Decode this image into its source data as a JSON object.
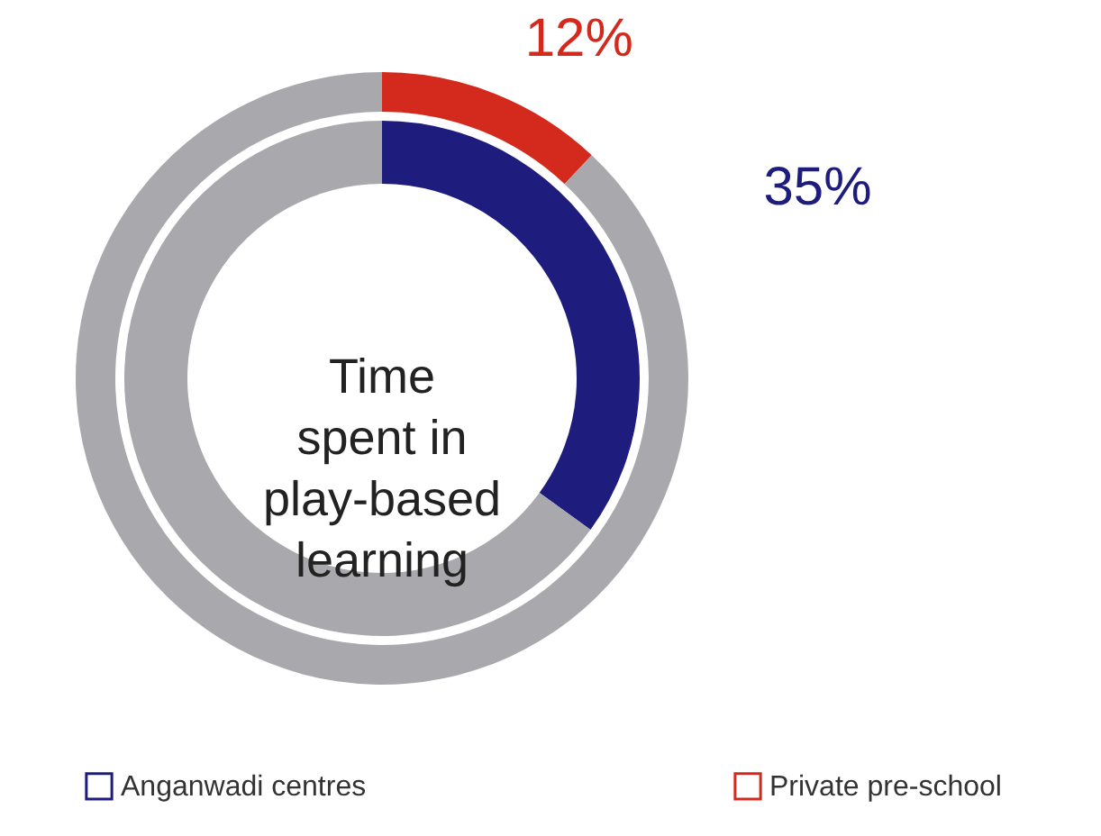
{
  "chart_data": {
    "type": "donut",
    "title": "Time spent in play-based learning",
    "legend": "bottom",
    "series": [
      {
        "name": "Private pre-school",
        "colors": [
          "#d42a1e",
          "#a9a9ad"
        ],
        "values": [
          12,
          88
        ],
        "value_labels": [
          "12%",
          null
        ]
      },
      {
        "name": "Anganwadi centres",
        "colors": [
          "#1e1c7c",
          "#a9a9ad"
        ],
        "values": [
          35,
          65
        ],
        "value_labels": [
          "35%",
          null
        ]
      }
    ]
  }
}
